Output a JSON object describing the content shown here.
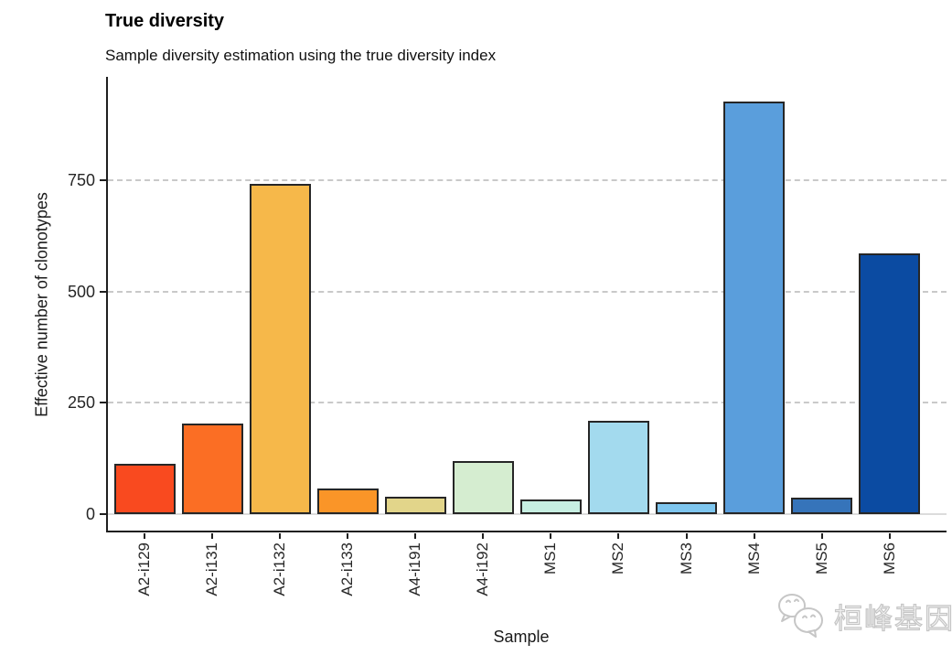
{
  "header": {
    "title": "True diversity",
    "subtitle": "Sample diversity estimation using the true diversity index"
  },
  "watermark": {
    "icon": "wechat-icon",
    "brand_text": "桓峰基因"
  },
  "chart_data": {
    "type": "bar",
    "title": "True diversity",
    "subtitle": "Sample diversity estimation using the true diversity index",
    "xlabel": "Sample",
    "ylabel": "Effective number of clonotypes",
    "categories": [
      "A2-i129",
      "A2-i131",
      "A2-i132",
      "A2-i133",
      "A4-i191",
      "A4-i192",
      "MS1",
      "MS2",
      "MS3",
      "MS4",
      "MS5",
      "MS6"
    ],
    "values": [
      113,
      203,
      742,
      57,
      39,
      119,
      33,
      210,
      27,
      927,
      36,
      585
    ],
    "bar_colors": [
      "#f94a1f",
      "#fb6e24",
      "#f6b84a",
      "#fa9528",
      "#e2d58a",
      "#d5edd0",
      "#c7efe2",
      "#a3daee",
      "#7ec6ef",
      "#5a9edc",
      "#3674ba",
      "#0b4ba2"
    ],
    "bar_border_color": "#262626",
    "yticks": [
      0,
      250,
      500,
      750
    ],
    "ylim": [
      0,
      980
    ],
    "grid": "horizontal major, dashed gray",
    "legend": "none",
    "axis_color": "#1f1f1f",
    "background": "#ffffff"
  }
}
